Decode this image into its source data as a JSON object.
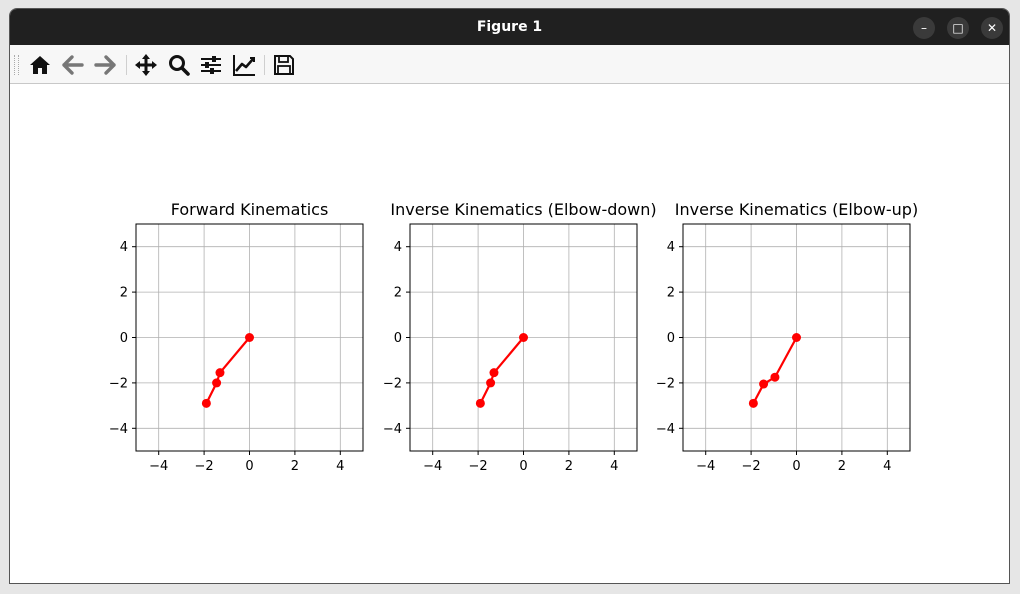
{
  "window": {
    "title": "Figure 1"
  },
  "toolbar": {
    "buttons": [
      {
        "name": "home-icon"
      },
      {
        "name": "back-icon"
      },
      {
        "name": "forward-icon"
      },
      {
        "name": "pan-icon"
      },
      {
        "name": "zoom-icon"
      },
      {
        "name": "configure-subplots-icon"
      },
      {
        "name": "edit-axis-icon"
      },
      {
        "name": "save-icon"
      }
    ]
  },
  "chart_data": [
    {
      "type": "line",
      "title": "Forward Kinematics",
      "xlim": [
        -5,
        5
      ],
      "ylim": [
        -5,
        5
      ],
      "xticks": [
        -4,
        -2,
        0,
        2,
        4
      ],
      "yticks": [
        -4,
        -2,
        0,
        2,
        4
      ],
      "grid": true,
      "series": [
        {
          "color": "#ff0000",
          "x": [
            0,
            -1.3,
            -1.45,
            -1.9
          ],
          "y": [
            0,
            -1.55,
            -2.0,
            -2.9
          ]
        }
      ]
    },
    {
      "type": "line",
      "title": "Inverse Kinematics (Elbow-down)",
      "xlim": [
        -5,
        5
      ],
      "ylim": [
        -5,
        5
      ],
      "xticks": [
        -4,
        -2,
        0,
        2,
        4
      ],
      "yticks": [
        -4,
        -2,
        0,
        2,
        4
      ],
      "grid": true,
      "series": [
        {
          "color": "#ff0000",
          "x": [
            0,
            -1.3,
            -1.45,
            -1.9
          ],
          "y": [
            0,
            -1.55,
            -2.0,
            -2.9
          ]
        }
      ]
    },
    {
      "type": "line",
      "title": "Inverse Kinematics (Elbow-up)",
      "xlim": [
        -5,
        5
      ],
      "ylim": [
        -5,
        5
      ],
      "xticks": [
        -4,
        -2,
        0,
        2,
        4
      ],
      "yticks": [
        -4,
        -2,
        0,
        2,
        4
      ],
      "grid": true,
      "series": [
        {
          "color": "#ff0000",
          "x": [
            0,
            -0.95,
            -1.45,
            -1.9
          ],
          "y": [
            0,
            -1.75,
            -2.05,
            -2.9
          ]
        }
      ]
    }
  ]
}
